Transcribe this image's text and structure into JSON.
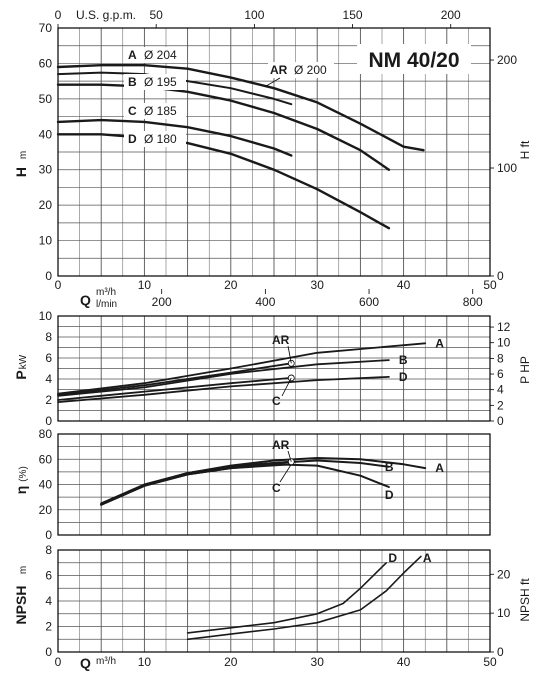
{
  "chart_data": [
    {
      "panel": "head",
      "type": "line",
      "title": "NM 40/20",
      "x": {
        "label": "Q",
        "unit": "m³/h",
        "range": [
          0,
          50
        ],
        "ticks": [
          0,
          10,
          20,
          30,
          40,
          50
        ]
      },
      "x_top": {
        "label": "U.S. g.p.m.",
        "range": [
          0,
          220
        ],
        "ticks": [
          0,
          50,
          100,
          150,
          200
        ]
      },
      "x_secondary": {
        "label": "l/min",
        "ticks": [
          200,
          400,
          600,
          800
        ]
      },
      "y": {
        "label": "H",
        "unit": "m",
        "range": [
          0,
          70
        ],
        "ticks": [
          0,
          10,
          20,
          30,
          40,
          50,
          60,
          70
        ]
      },
      "y_right": {
        "label": "H ft",
        "ticks": [
          0,
          100,
          200
        ]
      },
      "grid": true,
      "series": [
        {
          "name": "A",
          "impeller": "Ø 204",
          "points": [
            [
              0,
              59
            ],
            [
              5,
              59.5
            ],
            [
              10,
              59.5
            ],
            [
              15,
              58.5
            ],
            [
              20,
              56
            ],
            [
              25,
              53
            ],
            [
              30,
              49
            ],
            [
              35,
              43
            ],
            [
              40,
              36.5
            ],
            [
              42.3,
              35.5
            ]
          ]
        },
        {
          "name": "AR",
          "impeller": "Ø 200",
          "points": [
            [
              0,
              57
            ],
            [
              5,
              57.4
            ],
            [
              10,
              57
            ],
            [
              15,
              55
            ],
            [
              20,
              53
            ],
            [
              25,
              50
            ],
            [
              27,
              48.5
            ]
          ]
        },
        {
          "name": "B",
          "impeller": "Ø 195",
          "points": [
            [
              0,
              54
            ],
            [
              5,
              54
            ],
            [
              10,
              53.5
            ],
            [
              15,
              52
            ],
            [
              20,
              49.5
            ],
            [
              25,
              46
            ],
            [
              30,
              41.5
            ],
            [
              35,
              35.5
            ],
            [
              38.3,
              30
            ]
          ]
        },
        {
          "name": "C",
          "impeller": "Ø 185",
          "points": [
            [
              0,
              43.5
            ],
            [
              5,
              44
            ],
            [
              10,
              43.5
            ],
            [
              15,
              42
            ],
            [
              20,
              39.5
            ],
            [
              25,
              36
            ],
            [
              27,
              34
            ]
          ]
        },
        {
          "name": "D",
          "impeller": "Ø 180",
          "points": [
            [
              0,
              40
            ],
            [
              5,
              40
            ],
            [
              10,
              39
            ],
            [
              15,
              37.5
            ],
            [
              20,
              34.5
            ],
            [
              25,
              30
            ],
            [
              30,
              24.5
            ],
            [
              35,
              18
            ],
            [
              38.3,
              13.5
            ]
          ]
        }
      ]
    },
    {
      "panel": "power",
      "type": "line",
      "y": {
        "label": "P",
        "unit": "kW",
        "range": [
          0,
          10
        ],
        "ticks": [
          0,
          2,
          4,
          6,
          8,
          10
        ]
      },
      "y_right": {
        "label": "P HP",
        "ticks": [
          0,
          2,
          4,
          6,
          8,
          10,
          12
        ]
      },
      "grid": true,
      "series": [
        {
          "name": "A",
          "points": [
            [
              0,
              2.6
            ],
            [
              10,
              3.6
            ],
            [
              20,
              5
            ],
            [
              30,
              6.5
            ],
            [
              42.5,
              7.4
            ]
          ]
        },
        {
          "name": "AR",
          "points": [
            [
              0,
              2.5
            ],
            [
              10,
              3.4
            ],
            [
              20,
              4.6
            ],
            [
              27,
              5.5
            ]
          ]
        },
        {
          "name": "B",
          "points": [
            [
              0,
              2.4
            ],
            [
              10,
              3.2
            ],
            [
              20,
              4.5
            ],
            [
              30,
              5.4
            ],
            [
              38.3,
              5.8
            ]
          ]
        },
        {
          "name": "C",
          "points": [
            [
              0,
              2
            ],
            [
              10,
              2.8
            ],
            [
              20,
              3.6
            ],
            [
              27,
              4.1
            ]
          ]
        },
        {
          "name": "D",
          "points": [
            [
              0,
              1.8
            ],
            [
              10,
              2.5
            ],
            [
              20,
              3.3
            ],
            [
              30,
              3.9
            ],
            [
              38.3,
              4.2
            ]
          ]
        }
      ]
    },
    {
      "panel": "efficiency",
      "type": "line",
      "y": {
        "label": "η",
        "unit": "(%)",
        "range": [
          0,
          80
        ],
        "ticks": [
          0,
          20,
          40,
          60,
          80
        ]
      },
      "grid": true,
      "series": [
        {
          "name": "A",
          "points": [
            [
              5,
              25
            ],
            [
              10,
              40
            ],
            [
              15,
              49
            ],
            [
              20,
              55
            ],
            [
              25,
              59
            ],
            [
              30,
              61
            ],
            [
              35,
              60
            ],
            [
              40,
              56
            ],
            [
              42.5,
              53
            ]
          ]
        },
        {
          "name": "AR",
          "points": [
            [
              5,
              24
            ],
            [
              10,
              39.5
            ],
            [
              15,
              49
            ],
            [
              20,
              54.5
            ],
            [
              27,
              58
            ]
          ]
        },
        {
          "name": "B",
          "points": [
            [
              5,
              24.5
            ],
            [
              10,
              39.5
            ],
            [
              15,
              49
            ],
            [
              20,
              54
            ],
            [
              25,
              57
            ],
            [
              30,
              59
            ],
            [
              35,
              57
            ],
            [
              38.3,
              54
            ]
          ]
        },
        {
          "name": "C",
          "points": [
            [
              5,
              24
            ],
            [
              10,
              39
            ],
            [
              15,
              48
            ],
            [
              20,
              53
            ],
            [
              27,
              56
            ]
          ]
        },
        {
          "name": "D",
          "points": [
            [
              5,
              24
            ],
            [
              10,
              39
            ],
            [
              15,
              48
            ],
            [
              20,
              53
            ],
            [
              25,
              56
            ],
            [
              30,
              55
            ],
            [
              35,
              47
            ],
            [
              38.3,
              38
            ]
          ]
        }
      ]
    },
    {
      "panel": "npsh",
      "type": "line",
      "x": {
        "label": "Q",
        "unit": "m³/h",
        "range": [
          0,
          50
        ],
        "ticks": [
          0,
          10,
          20,
          30,
          40,
          50
        ]
      },
      "y": {
        "label": "NPSH",
        "unit": "m",
        "range": [
          0,
          8
        ],
        "ticks": [
          0,
          2,
          4,
          6,
          8
        ]
      },
      "y_right": {
        "label": "NPSH ft",
        "ticks": [
          0,
          10,
          20
        ]
      },
      "grid": true,
      "series": [
        {
          "name": "A",
          "points": [
            [
              15,
              1
            ],
            [
              20,
              1.4
            ],
            [
              25,
              1.8
            ],
            [
              30,
              2.3
            ],
            [
              35,
              3.3
            ],
            [
              38,
              4.8
            ],
            [
              40,
              6.2
            ],
            [
              42,
              7.5
            ]
          ]
        },
        {
          "name": "D",
          "points": [
            [
              15,
              1.5
            ],
            [
              20,
              1.9
            ],
            [
              25,
              2.3
            ],
            [
              30,
              3
            ],
            [
              33,
              3.8
            ],
            [
              35,
              5
            ],
            [
              38,
              7
            ]
          ]
        }
      ]
    }
  ]
}
